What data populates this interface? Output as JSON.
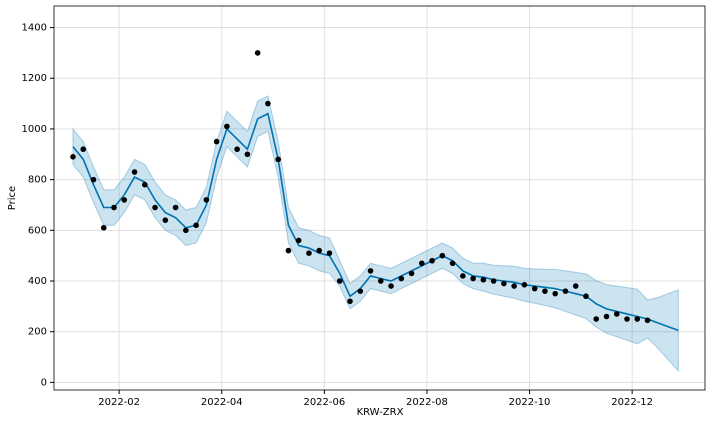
{
  "chart_data": {
    "type": "forecast",
    "xlabel": "KRW-ZRX",
    "ylabel": "Price",
    "x": [
      1.1,
      1.3,
      1.5,
      1.7,
      1.9,
      2.1,
      2.3,
      2.5,
      2.7,
      2.9,
      3.1,
      3.3,
      3.5,
      3.7,
      3.9,
      4.1,
      4.3,
      4.5,
      4.7,
      4.9,
      5.1,
      5.3,
      5.5,
      5.7,
      5.9,
      6.1,
      6.3,
      6.5,
      6.7,
      6.9,
      7.1,
      7.3,
      7.5,
      7.7,
      7.9,
      8.1,
      8.3,
      8.5,
      8.7,
      8.9,
      9.1,
      9.3,
      9.5,
      9.7,
      9.9,
      10.1,
      10.3,
      10.5,
      10.7,
      10.9,
      11.1,
      11.3,
      11.5,
      11.7,
      11.9,
      12.1,
      12.3,
      12.5,
      12.7,
      12.9
    ],
    "series": [
      {
        "type": "band",
        "color": "#0072b2",
        "upper": [
          1000,
          950,
          850,
          760,
          760,
          810,
          880,
          860,
          790,
          740,
          720,
          680,
          690,
          770,
          950,
          1070,
          1030,
          990,
          1110,
          1130,
          950,
          690,
          610,
          600,
          580,
          570,
          480,
          390,
          420,
          470,
          460,
          450,
          470,
          490,
          510,
          530,
          550,
          530,
          490,
          470,
          470,
          462,
          460,
          458,
          450,
          448,
          446,
          446,
          440,
          434,
          428,
          402,
          386,
          380,
          374,
          368,
          325,
          335,
          350,
          365
        ],
        "lower": [
          860,
          810,
          710,
          620,
          620,
          670,
          740,
          720,
          650,
          600,
          580,
          540,
          550,
          630,
          810,
          930,
          890,
          850,
          970,
          990,
          810,
          550,
          470,
          460,
          440,
          430,
          380,
          290,
          320,
          370,
          360,
          350,
          370,
          390,
          410,
          430,
          450,
          430,
          390,
          370,
          360,
          348,
          340,
          332,
          320,
          312,
          304,
          294,
          280,
          266,
          252,
          218,
          194,
          180,
          166,
          152,
          175,
          135,
          90,
          45
        ]
      },
      {
        "type": "line",
        "color": "#0072b2",
        "values": [
          930,
          880,
          780,
          690,
          690,
          740,
          810,
          790,
          720,
          670,
          650,
          610,
          620,
          700,
          880,
          1000,
          960,
          920,
          1040,
          1060,
          880,
          620,
          540,
          530,
          510,
          500,
          430,
          340,
          370,
          420,
          410,
          400,
          420,
          440,
          460,
          480,
          500,
          480,
          440,
          420,
          415,
          405,
          400,
          395,
          385,
          380,
          375,
          370,
          360,
          350,
          340,
          310,
          290,
          280,
          270,
          260,
          250,
          235,
          220,
          205
        ]
      },
      {
        "type": "scatter",
        "color": "#000000",
        "values": [
          890,
          920,
          800,
          610,
          690,
          720,
          830,
          780,
          690,
          640,
          690,
          600,
          620,
          720,
          950,
          1010,
          920,
          900,
          1300,
          1100,
          880,
          520,
          560,
          510,
          520,
          510,
          400,
          320,
          360,
          440,
          400,
          380,
          410,
          430,
          470,
          480,
          500,
          470,
          420,
          410,
          405,
          400,
          390,
          380,
          385,
          370,
          360,
          350,
          360,
          380,
          340,
          250,
          260,
          270,
          250,
          250,
          245,
          null,
          null,
          null
        ]
      }
    ],
    "xlim": [
      0.73,
      13.42
    ],
    "xticks": [
      {
        "value": 2,
        "label": "2022-02"
      },
      {
        "value": 4,
        "label": "2022-04"
      },
      {
        "value": 6,
        "label": "2022-06"
      },
      {
        "value": 8,
        "label": "2022-08"
      },
      {
        "value": 10,
        "label": "2022-10"
      },
      {
        "value": 12,
        "label": "2022-12"
      }
    ],
    "ylim": [
      -30,
      1485
    ],
    "yticks": [
      0,
      200,
      400,
      600,
      800,
      1000,
      1200,
      1400
    ],
    "grid": true
  }
}
